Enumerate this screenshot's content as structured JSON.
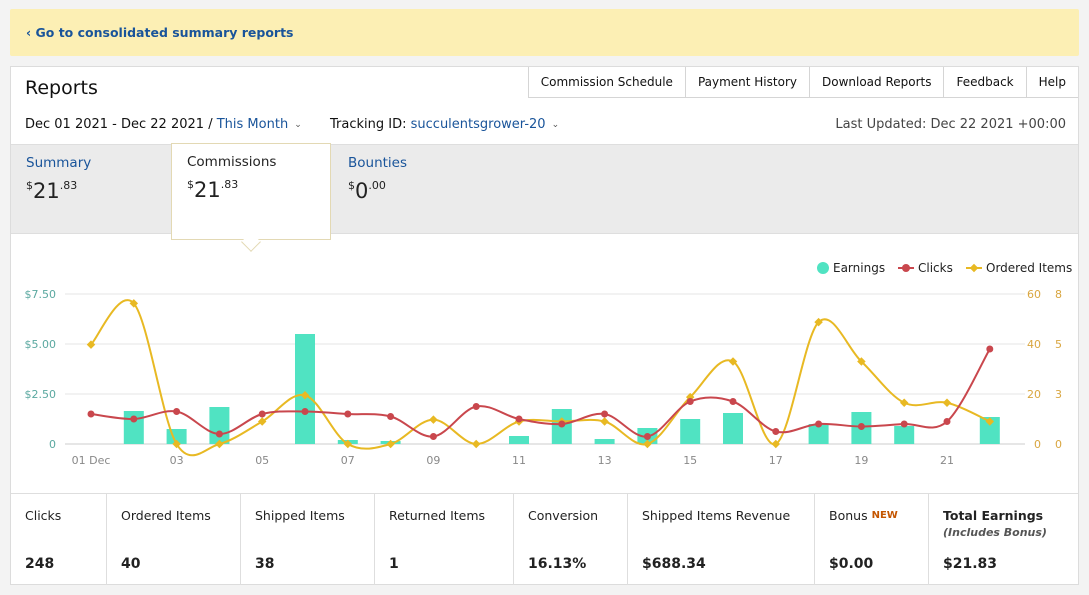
{
  "banner": {
    "back_link": "‹ Go to consolidated summary reports"
  },
  "header": {
    "title": "Reports",
    "nav": [
      "Commission Schedule",
      "Payment History",
      "Download Reports",
      "Feedback",
      "Help"
    ]
  },
  "filters": {
    "date_range": "Dec 01 2021 - Dec 22 2021",
    "separator": "/",
    "period": "This Month",
    "tracking_label": "Tracking ID:",
    "tracking_id": "succulentsgrower-20",
    "last_updated": "Last Updated: Dec 22 2021 +00:00"
  },
  "summary_tabs": [
    {
      "label": "Summary",
      "currency": "$",
      "whole": "21",
      "cents": ".83"
    },
    {
      "label": "Commissions",
      "currency": "$",
      "whole": "21",
      "cents": ".83"
    },
    {
      "label": "Bounties",
      "currency": "$",
      "whole": "0",
      "cents": ".00"
    }
  ],
  "colors": {
    "earnings": "#50e3c2",
    "clicks": "#c9474d",
    "ordered": "#e8b923",
    "link": "#19549a",
    "left_axis": "#5aa8a0",
    "right_axis": "#d9a640"
  },
  "chart_data": {
    "type": "bar+line",
    "x": [
      "01 Dec",
      "02",
      "03",
      "04",
      "05",
      "06",
      "07",
      "08",
      "09",
      "10",
      "11",
      "12",
      "13",
      "14",
      "15",
      "16",
      "17",
      "18",
      "19",
      "20",
      "21",
      "22"
    ],
    "x_tick_labels": [
      "01 Dec",
      "03",
      "05",
      "07",
      "09",
      "11",
      "13",
      "15",
      "17",
      "19",
      "21"
    ],
    "y_left_ticks": [
      "$7.50",
      "$5.00",
      "$2.50",
      "0"
    ],
    "y_left_lim": [
      0,
      7.5
    ],
    "y_right_clicks_ticks": [
      "60",
      "40",
      "20",
      "0"
    ],
    "y_right_clicks_lim": [
      0,
      60
    ],
    "y_right_ordered_ticks": [
      "8",
      "5",
      "3",
      "0"
    ],
    "y_right_ordered_lim": [
      0,
      8
    ],
    "legend": {
      "position": "top-right",
      "entries": [
        "Earnings",
        "Clicks",
        "Ordered Items"
      ]
    },
    "series": [
      {
        "name": "Earnings",
        "type": "bar",
        "axis": "left",
        "values": [
          0,
          1.65,
          0.75,
          1.85,
          0,
          5.5,
          0.2,
          0.15,
          0,
          0,
          0.4,
          1.75,
          0.25,
          0.8,
          1.25,
          1.55,
          0,
          1.0,
          1.6,
          0.9,
          0,
          1.35
        ]
      },
      {
        "name": "Clicks",
        "type": "line",
        "axis": "right1",
        "values": [
          12,
          10,
          13,
          4,
          12,
          13,
          12,
          11,
          3,
          15,
          10,
          8,
          12,
          3,
          17,
          17,
          5,
          8,
          7,
          8,
          9,
          38
        ]
      },
      {
        "name": "Ordered Items",
        "type": "line",
        "axis": "right2",
        "values": [
          5.3,
          7.5,
          0,
          0,
          1.2,
          2.6,
          0,
          0,
          1.3,
          0,
          1.2,
          1.2,
          1.2,
          0,
          2.5,
          4.4,
          0,
          6.5,
          4.4,
          2.2,
          2.2,
          1.2
        ]
      }
    ]
  },
  "metrics": [
    {
      "label": "Clicks",
      "value": "248"
    },
    {
      "label": "Ordered Items",
      "value": "40"
    },
    {
      "label": "Shipped Items",
      "value": "38"
    },
    {
      "label": "Returned Items",
      "value": "1"
    },
    {
      "label": "Conversion",
      "value": "16.13%"
    },
    {
      "label": "Shipped Items Revenue",
      "value": "$688.34"
    },
    {
      "label": "Bonus",
      "badge": "NEW",
      "value": "$0.00"
    },
    {
      "label": "Total Earnings",
      "sublabel": "(Includes Bonus)",
      "value": "$21.83"
    }
  ]
}
